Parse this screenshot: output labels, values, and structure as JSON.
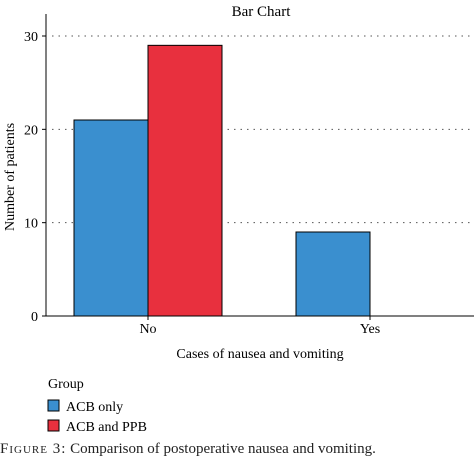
{
  "chart_data": {
    "type": "bar",
    "title": "Bar Chart",
    "xlabel": "Cases of nausea and vomiting",
    "ylabel": "Number of patients",
    "categories": [
      "No",
      "Yes"
    ],
    "series": [
      {
        "name": "ACB only",
        "values": [
          21,
          9
        ],
        "color": "#3a8fcf"
      },
      {
        "name": "ACB and PPB",
        "values": [
          29,
          0
        ],
        "color": "#e8303e"
      }
    ],
    "ylim": [
      0,
      31
    ],
    "yticks": [
      0,
      10,
      20,
      30
    ],
    "grid": "horizontal dotted",
    "legend": {
      "title": "Group",
      "placement": "bottom-left"
    }
  },
  "caption": {
    "label": "Figure 3:",
    "text": "Comparison of postoperative nausea and vomiting."
  }
}
